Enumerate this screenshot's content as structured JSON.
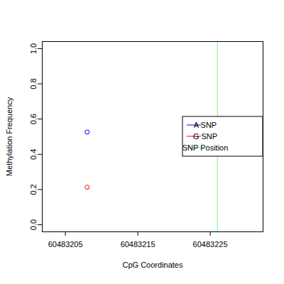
{
  "chart_data": {
    "type": "scatter",
    "xlabel": "CpG Coordinates",
    "ylabel": "Methylation Frequency",
    "xlim": [
      60483201.8,
      60483232.3
    ],
    "xticks": [
      60483205,
      60483215,
      60483225
    ],
    "ylim": [
      -0.04,
      1.04
    ],
    "yticks": [
      {
        "value": 0,
        "label": "0.0"
      },
      {
        "value": 0.2,
        "label": "0.2"
      },
      {
        "value": 0.4,
        "label": "0.4"
      },
      {
        "value": 0.6,
        "label": "0.6"
      },
      {
        "value": 0.8,
        "label": "0.8"
      },
      {
        "value": 1,
        "label": "1.0"
      }
    ],
    "grid": false,
    "legend": "right",
    "series": [
      {
        "name": "A SNP",
        "color": "#0000ff",
        "marker": "circle",
        "x": [
          60483208
        ],
        "values": [
          0.526
        ]
      },
      {
        "name": "G SNP",
        "color": "#ff0000",
        "marker": "circle",
        "x": [
          60483208
        ],
        "values": [
          0.213
        ]
      },
      {
        "name": "SNP Position",
        "color": "#66ff66",
        "type": "vline",
        "x": [
          60483226
        ]
      }
    ]
  }
}
